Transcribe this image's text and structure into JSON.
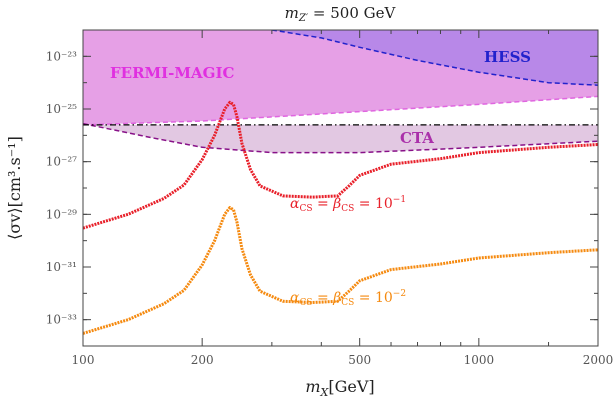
{
  "chart_data": {
    "type": "line",
    "title": "m_{Z'} = 500 GeV",
    "xlabel": "m_X[GeV]",
    "ylabel": "⟨σv⟩[cm³.s⁻¹]",
    "x_scale": "log",
    "y_scale": "log",
    "xlim": [
      100,
      2000
    ],
    "ylim": [
      1e-34,
      1e-22
    ],
    "x_ticks": [
      100,
      200,
      500,
      1000,
      2000
    ],
    "x_tick_labels": [
      "100",
      "200",
      "500",
      "1000",
      "2000"
    ],
    "y_ticks": [
      1e-33,
      1e-31,
      1e-29,
      1e-27,
      1e-25,
      1e-23
    ],
    "y_tick_labels": [
      "10⁻³³",
      "10⁻³¹",
      "10⁻²⁹",
      "10⁻²⁷",
      "10⁻²⁵",
      "10⁻²³"
    ],
    "regions": [
      {
        "name": "FERMI-MAGIC",
        "color": "#e066e0",
        "fill": "#e6a0e6",
        "boundary_x": [
          100,
          200,
          300,
          500,
          1000,
          2000
        ],
        "boundary_y": [
          2.5e-26,
          3.5e-26,
          5e-26,
          8e-26,
          1.5e-25,
          3e-25
        ]
      },
      {
        "name": "HESS",
        "color": "#2222cc",
        "fill": "#b888e8",
        "boundary_x": [
          300,
          400,
          500,
          700,
          1000,
          1500,
          2000
        ],
        "boundary_y": [
          1e-22,
          5e-23,
          2.2e-23,
          7e-24,
          2.5e-24,
          1e-24,
          8e-25
        ]
      },
      {
        "name": "CTA",
        "color": "#881188",
        "fill": "#e2c8e2",
        "boundary_x": [
          100,
          150,
          200,
          300,
          500,
          800,
          1000,
          2000
        ],
        "boundary_y": [
          2.8e-26,
          8e-27,
          3.5e-27,
          2.2e-27,
          2.2e-27,
          3e-27,
          3.5e-27,
          6e-27
        ]
      }
    ],
    "reference_line": {
      "y": 2.5e-26,
      "color": "#000000"
    },
    "series": [
      {
        "name": "α_CS = β_CS = 10⁻¹",
        "color": "#e8202a",
        "x": [
          100,
          130,
          160,
          180,
          200,
          215,
          228,
          235,
          240,
          245,
          252,
          265,
          280,
          320,
          380,
          440,
          470,
          500,
          600,
          800,
          1000,
          1500,
          2000
        ],
        "y": [
          3e-30,
          1e-29,
          4e-29,
          1.3e-28,
          1.2e-27,
          1e-26,
          1e-25,
          1.8e-25,
          1.5e-25,
          5e-26,
          5e-27,
          5e-28,
          1.2e-28,
          5e-29,
          4.5e-29,
          5e-29,
          1.2e-28,
          3e-28,
          8e-28,
          1.3e-27,
          2.2e-27,
          3.5e-27,
          4.5e-27
        ]
      },
      {
        "name": "α_CS = β_CS = 10⁻²",
        "color": "#f58a10",
        "x": [
          100,
          130,
          160,
          180,
          200,
          215,
          228,
          235,
          240,
          245,
          252,
          265,
          280,
          320,
          380,
          440,
          470,
          500,
          600,
          800,
          1000,
          1500,
          2000
        ],
        "y": [
          3e-34,
          1e-33,
          4e-33,
          1.3e-32,
          1.2e-31,
          1e-30,
          1e-29,
          1.8e-29,
          1.5e-29,
          5e-30,
          5e-31,
          5e-32,
          1.2e-32,
          5e-33,
          4.5e-33,
          5e-33,
          1.2e-32,
          3e-32,
          8e-32,
          1.3e-31,
          2.2e-31,
          3.5e-31,
          4.5e-31
        ]
      }
    ],
    "grid": false,
    "legend": "none"
  }
}
